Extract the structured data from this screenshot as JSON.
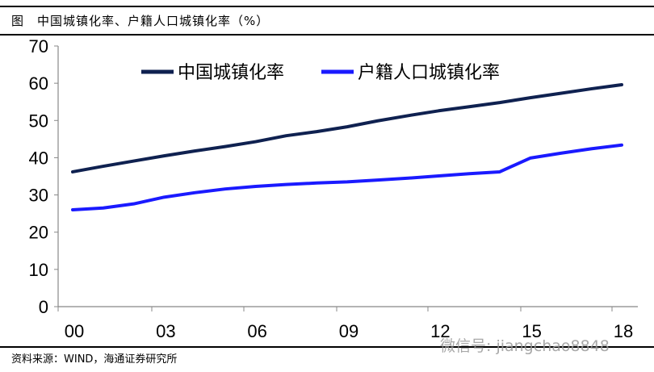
{
  "title": "图　中国城镇化率、户籍人口城镇化率（%）",
  "source": "资料来源：WIND，海通证券研究所",
  "watermark": "微信号: jiangchao8848",
  "chart_data": {
    "type": "line",
    "title": "中国城镇化率、户籍人口城镇化率（%）",
    "x": [
      2000,
      2001,
      2002,
      2003,
      2004,
      2005,
      2006,
      2007,
      2008,
      2009,
      2010,
      2011,
      2012,
      2013,
      2014,
      2015,
      2016,
      2017,
      2018
    ],
    "xticks": [
      "00",
      "03",
      "06",
      "09",
      "12",
      "15",
      "18"
    ],
    "yticks": [
      "0",
      "10",
      "20",
      "30",
      "40",
      "50",
      "60",
      "70"
    ],
    "ylim": [
      0,
      70
    ],
    "grid": false,
    "legend_position": "top-center",
    "series": [
      {
        "name": "中国城镇化率",
        "color": "#0f2150",
        "values": [
          36.2,
          37.7,
          39.1,
          40.5,
          41.8,
          43.0,
          44.3,
          45.9,
          47.0,
          48.3,
          49.9,
          51.3,
          52.6,
          53.7,
          54.8,
          56.1,
          57.3,
          58.5,
          59.6
        ]
      },
      {
        "name": "户籍人口城镇化率",
        "color": "#1a1aff",
        "values": [
          26.0,
          26.5,
          27.6,
          29.4,
          30.6,
          31.6,
          32.3,
          32.8,
          33.2,
          33.5,
          34.0,
          34.5,
          35.1,
          35.7,
          36.2,
          39.9,
          41.2,
          42.4,
          43.4
        ]
      }
    ]
  }
}
